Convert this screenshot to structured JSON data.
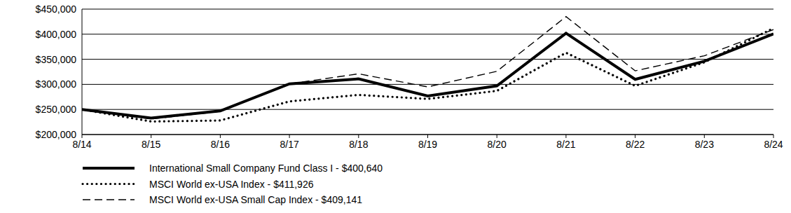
{
  "chart_data": {
    "type": "line",
    "categories": [
      "8/14",
      "8/15",
      "8/16",
      "8/17",
      "8/18",
      "8/19",
      "8/20",
      "8/21",
      "8/22",
      "8/23",
      "8/24"
    ],
    "series": [
      {
        "name": "International Small Company Fund Class I - $400,640",
        "color": "#000000",
        "line_style": "solid",
        "values": [
          250000,
          233000,
          247000,
          301000,
          311000,
          277000,
          297000,
          402000,
          310000,
          346000,
          400640
        ]
      },
      {
        "name": "MSCI World ex-USA Index - $411,926",
        "color": "#000000",
        "line_style": "dotted",
        "values": [
          250000,
          226000,
          228000,
          266000,
          279000,
          271000,
          287000,
          363000,
          297000,
          344000,
          411926
        ]
      },
      {
        "name": "MSCI World ex-USA Small Cap Index - $409,141",
        "color": "#000000",
        "line_style": "dashed",
        "values": [
          250000,
          231000,
          246000,
          301000,
          321000,
          295000,
          326000,
          435000,
          327000,
          357000,
          409141
        ]
      }
    ],
    "ylim": [
      200000,
      450000
    ],
    "yticks": [
      {
        "value": 200000,
        "label": "$200,000"
      },
      {
        "value": 250000,
        "label": "$250,000"
      },
      {
        "value": 300000,
        "label": "$300,000"
      },
      {
        "value": 350000,
        "label": "$350,000"
      },
      {
        "value": 400000,
        "label": "$400,000"
      },
      {
        "value": 450000,
        "label": "$450,000"
      }
    ],
    "grid": true,
    "legend": "bottom-left"
  }
}
